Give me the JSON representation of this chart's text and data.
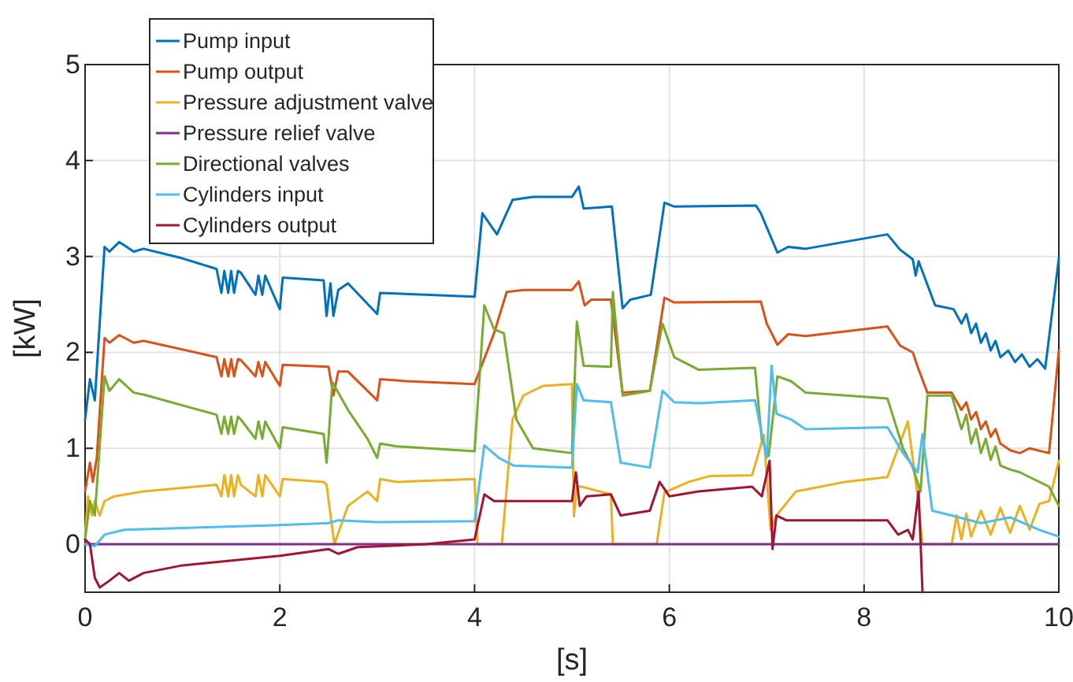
{
  "chart_data": {
    "type": "line",
    "xlabel": "[s]",
    "ylabel": "[kW]",
    "xlim": [
      0,
      10
    ],
    "ylim": [
      -0.5,
      5
    ],
    "xticks": [
      0,
      2,
      4,
      6,
      8,
      10
    ],
    "yticks": [
      0,
      1,
      2,
      3,
      4,
      5
    ],
    "grid": true,
    "legend": "top left",
    "marker": "none",
    "line_style": "solid",
    "series": [
      {
        "name": "Pump input",
        "color": "#0072bd",
        "x": [
          0,
          0.05,
          0.1,
          0.2,
          0.25,
          0.35,
          0.5,
          0.6,
          1.0,
          1.35,
          1.4,
          1.43,
          1.47,
          1.5,
          1.53,
          1.57,
          1.6,
          1.75,
          1.78,
          1.82,
          1.85,
          2.0,
          2.03,
          2.45,
          2.48,
          2.52,
          2.55,
          2.6,
          2.7,
          3.0,
          3.03,
          3.5,
          4.0,
          4.08,
          4.23,
          4.39,
          4.6,
          5.0,
          5.07,
          5.12,
          5.41,
          5.52,
          5.6,
          5.81,
          5.95,
          6.05,
          6.89,
          6.94,
          7.11,
          7.22,
          7.4,
          8.24,
          8.37,
          8.5,
          8.53,
          8.56,
          8.73,
          8.92,
          9.0,
          9.05,
          9.1,
          9.15,
          9.2,
          9.25,
          9.3,
          9.35,
          9.4,
          9.48,
          9.55,
          9.62,
          9.7,
          9.78,
          9.86,
          10.0
        ],
        "values": [
          1.3,
          1.72,
          1.5,
          3.1,
          3.05,
          3.15,
          3.05,
          3.08,
          2.98,
          2.87,
          2.62,
          2.85,
          2.62,
          2.85,
          2.62,
          2.85,
          2.83,
          2.6,
          2.8,
          2.6,
          2.8,
          2.45,
          2.78,
          2.75,
          2.38,
          2.72,
          2.38,
          2.65,
          2.72,
          2.4,
          2.62,
          2.6,
          2.58,
          3.45,
          3.23,
          3.59,
          3.62,
          3.62,
          3.73,
          3.5,
          3.52,
          2.46,
          2.55,
          2.6,
          3.56,
          3.52,
          3.53,
          3.45,
          3.04,
          3.1,
          3.08,
          3.23,
          3.07,
          2.97,
          2.8,
          2.95,
          2.49,
          2.45,
          2.3,
          2.4,
          2.2,
          2.3,
          2.1,
          2.2,
          2.02,
          2.12,
          1.95,
          2.02,
          1.9,
          1.98,
          1.85,
          1.93,
          1.83,
          2.98
        ]
      },
      {
        "name": "Pump output",
        "color": "#d95319",
        "x": [
          0,
          0.05,
          0.08,
          0.12,
          0.2,
          0.25,
          0.35,
          0.5,
          0.6,
          1.35,
          1.4,
          1.43,
          1.47,
          1.5,
          1.53,
          1.57,
          1.6,
          1.75,
          1.78,
          1.82,
          1.85,
          2.0,
          2.03,
          2.5,
          2.55,
          2.6,
          2.7,
          3.0,
          3.03,
          3.3,
          4.0,
          4.2,
          4.33,
          4.5,
          5.0,
          5.07,
          5.13,
          5.2,
          5.4,
          5.52,
          5.8,
          5.95,
          6.05,
          6.94,
          7.0,
          7.11,
          7.22,
          7.4,
          8.24,
          8.37,
          8.5,
          8.55,
          8.65,
          8.9,
          9.0,
          9.05,
          9.1,
          9.15,
          9.2,
          9.25,
          9.3,
          9.35,
          9.4,
          9.5,
          9.6,
          9.7,
          9.9,
          10.0
        ],
        "values": [
          0.55,
          0.85,
          0.65,
          0.9,
          2.15,
          2.1,
          2.18,
          2.1,
          2.12,
          1.95,
          1.75,
          1.93,
          1.75,
          1.93,
          1.75,
          1.93,
          1.92,
          1.75,
          1.9,
          1.75,
          1.9,
          1.65,
          1.87,
          1.85,
          1.55,
          1.8,
          1.8,
          1.5,
          1.72,
          1.7,
          1.67,
          2.2,
          2.63,
          2.65,
          2.65,
          2.74,
          2.49,
          2.55,
          2.55,
          1.58,
          1.6,
          2.57,
          2.52,
          2.53,
          2.3,
          2.08,
          2.19,
          2.17,
          2.27,
          2.07,
          2.0,
          1.85,
          1.58,
          1.58,
          1.4,
          1.48,
          1.3,
          1.38,
          1.2,
          1.28,
          1.12,
          1.2,
          1.05,
          0.98,
          0.95,
          1.0,
          0.95,
          2.02
        ]
      },
      {
        "name": "Pressure adjustment valve",
        "color": "#edb120",
        "x": [
          0,
          0.03,
          0.07,
          0.1,
          0.15,
          0.2,
          0.3,
          0.6,
          1.35,
          1.4,
          1.43,
          1.47,
          1.5,
          1.53,
          1.57,
          1.6,
          1.75,
          1.78,
          1.82,
          1.85,
          2.0,
          2.03,
          2.45,
          2.48,
          2.56,
          2.7,
          2.9,
          3.0,
          3.03,
          3.2,
          4.0,
          4.03,
          4.28,
          4.39,
          4.5,
          4.7,
          5.0,
          5.02,
          5.05,
          5.1,
          5.4,
          5.42,
          5.87,
          5.95,
          6.2,
          6.41,
          6.85,
          6.97,
          7.04,
          7.1,
          7.3,
          7.8,
          8.24,
          8.45,
          8.55,
          8.6,
          8.9,
          8.95,
          9.0,
          9.05,
          9.1,
          9.2,
          9.3,
          9.4,
          9.5,
          9.6,
          9.7,
          9.8,
          9.9,
          10.0
        ],
        "values": [
          0.1,
          0.5,
          0.3,
          0.45,
          0.3,
          0.45,
          0.5,
          0.55,
          0.62,
          0.5,
          0.72,
          0.5,
          0.72,
          0.5,
          0.72,
          0.62,
          0.5,
          0.72,
          0.5,
          0.72,
          0.5,
          0.68,
          0.65,
          0.62,
          0,
          0.4,
          0.55,
          0.45,
          0.68,
          0.65,
          0.68,
          0,
          0,
          1.3,
          1.55,
          1.65,
          1.67,
          0.29,
          0.6,
          0.6,
          0.52,
          0,
          0,
          0.54,
          0.65,
          0.71,
          0.72,
          1.14,
          0.15,
          0.3,
          0.55,
          0.65,
          0.7,
          1.28,
          0.5,
          0,
          0,
          0.3,
          0.05,
          0.32,
          0.08,
          0.35,
          0.1,
          0.38,
          0.12,
          0.4,
          0.15,
          0.42,
          0.45,
          0.87
        ]
      },
      {
        "name": "Pressure relief valve",
        "color": "#7e2f8e",
        "x": [
          0,
          10
        ],
        "values": [
          0,
          0
        ]
      },
      {
        "name": "Directional valves",
        "color": "#77ac30",
        "x": [
          0,
          0.05,
          0.1,
          0.2,
          0.25,
          0.35,
          0.5,
          0.6,
          1.35,
          1.4,
          1.43,
          1.47,
          1.5,
          1.53,
          1.57,
          1.6,
          1.75,
          1.78,
          1.82,
          1.85,
          2.0,
          2.03,
          2.45,
          2.48,
          2.5,
          2.54,
          2.7,
          2.9,
          3.0,
          3.03,
          3.2,
          4.0,
          4.1,
          4.2,
          4.3,
          4.43,
          4.6,
          5.0,
          5.05,
          5.12,
          5.4,
          5.42,
          5.52,
          5.8,
          5.93,
          6.05,
          6.3,
          6.88,
          6.95,
          7.02,
          7.11,
          7.25,
          7.4,
          8.24,
          8.4,
          8.5,
          8.58,
          8.65,
          8.9,
          9.0,
          9.05,
          9.1,
          9.15,
          9.2,
          9.25,
          9.3,
          9.35,
          9.4,
          9.5,
          9.6,
          9.9,
          10.0
        ],
        "values": [
          0.05,
          0.45,
          0.3,
          1.75,
          1.6,
          1.72,
          1.58,
          1.56,
          1.35,
          1.15,
          1.33,
          1.15,
          1.33,
          1.15,
          1.33,
          1.3,
          1.1,
          1.28,
          1.1,
          1.28,
          1.0,
          1.22,
          1.15,
          0.85,
          1.1,
          1.69,
          1.4,
          1.1,
          0.9,
          1.05,
          1.02,
          0.97,
          2.49,
          2.24,
          2.2,
          1.3,
          1.0,
          0.95,
          2.32,
          1.86,
          1.85,
          2.63,
          1.55,
          1.6,
          2.3,
          1.95,
          1.82,
          1.84,
          1.09,
          0.92,
          1.75,
          1.7,
          1.58,
          1.52,
          1.0,
          0.8,
          0.55,
          1.55,
          1.55,
          1.2,
          1.35,
          1.05,
          1.2,
          0.95,
          1.1,
          0.88,
          1.02,
          0.82,
          0.78,
          0.75,
          0.6,
          0.4
        ]
      },
      {
        "name": "Cylinders input",
        "color": "#4dbeee",
        "x": [
          0,
          0.1,
          0.2,
          0.4,
          1.0,
          2.0,
          2.5,
          2.6,
          3.0,
          4.0,
          4.1,
          4.25,
          4.4,
          5.0,
          5.05,
          5.12,
          5.4,
          5.5,
          5.8,
          5.93,
          6.05,
          6.3,
          6.88,
          7.0,
          7.05,
          7.1,
          7.25,
          7.4,
          8.24,
          8.4,
          8.55,
          8.6,
          8.7,
          8.9,
          9.2,
          9.5,
          9.8,
          10.0
        ],
        "values": [
          0,
          -0.02,
          0.1,
          0.15,
          0.17,
          0.2,
          0.22,
          0.25,
          0.23,
          0.24,
          1.03,
          0.9,
          0.82,
          0.8,
          1.67,
          1.5,
          1.48,
          0.85,
          0.8,
          1.6,
          1.48,
          1.47,
          1.5,
          0.9,
          1.86,
          1.36,
          1.3,
          1.2,
          1.22,
          0.95,
          0.75,
          1.15,
          0.35,
          0.3,
          0.22,
          0.28,
          0.15,
          0.08
        ]
      },
      {
        "name": "Cylinders output",
        "color": "#a2142f",
        "x": [
          0,
          0.05,
          0.1,
          0.15,
          0.25,
          0.35,
          0.45,
          0.6,
          1.0,
          2.0,
          2.5,
          2.6,
          2.8,
          3.5,
          4.0,
          4.1,
          4.2,
          5.0,
          5.04,
          5.08,
          5.15,
          5.4,
          5.5,
          5.8,
          5.9,
          6.0,
          6.3,
          6.85,
          6.95,
          7.03,
          7.06,
          7.1,
          7.2,
          8.24,
          8.35,
          8.45,
          8.5,
          8.56,
          8.6
        ],
        "values": [
          0.05,
          0,
          -0.35,
          -0.45,
          -0.38,
          -0.3,
          -0.38,
          -0.3,
          -0.22,
          -0.12,
          -0.05,
          -0.1,
          -0.03,
          0,
          0.05,
          0.52,
          0.45,
          0.45,
          0.75,
          0.4,
          0.5,
          0.52,
          0.3,
          0.35,
          0.65,
          0.5,
          0.55,
          0.6,
          0.5,
          0.87,
          -0.05,
          0.3,
          0.25,
          0.25,
          0.1,
          0.15,
          0.05,
          0.55,
          -0.5
        ]
      }
    ]
  }
}
